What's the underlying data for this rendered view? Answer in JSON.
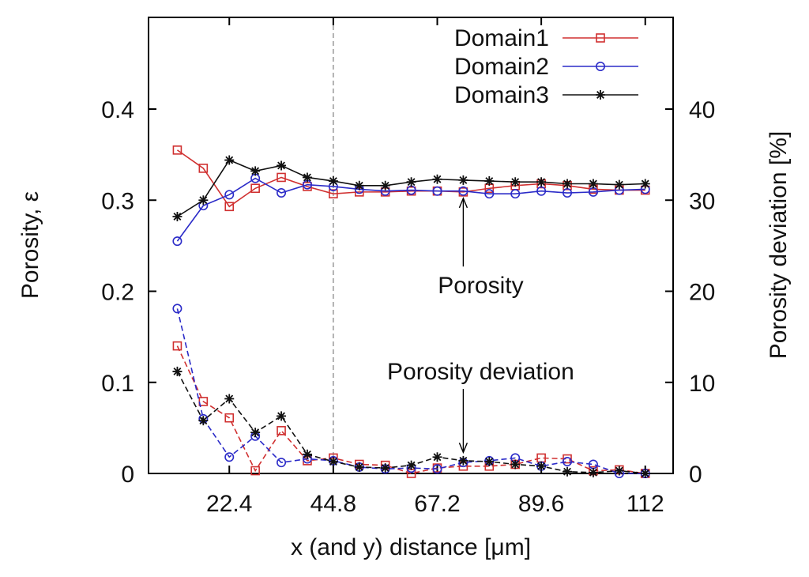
{
  "chart_data": {
    "type": "line",
    "xlabel": "x (and y) distance [μm]",
    "ylabel_left": "Porosity, ε",
    "ylabel_right": "Porosity deviation [%]",
    "xlim": [
      5,
      118
    ],
    "ylim_left": [
      0,
      0.4
    ],
    "ylim_right": [
      0,
      40
    ],
    "x_ticks": [
      "22.4",
      "44.8",
      "67.2",
      "89.6",
      "112"
    ],
    "x_tick_values": [
      22.4,
      44.8,
      67.2,
      89.6,
      112
    ],
    "y_ticks_left": [
      "0",
      "0.1",
      "0.2",
      "0.3",
      "0.4"
    ],
    "y_tick_values_left": [
      0,
      0.1,
      0.2,
      0.3,
      0.4
    ],
    "y_ticks_right": [
      "0",
      "10",
      "20",
      "30",
      "40"
    ],
    "y_tick_values_right": [
      0,
      10,
      20,
      30,
      40
    ],
    "grid": false,
    "reference_line_x": 44.8,
    "legend_position": "top-right",
    "x": [
      11.2,
      16.8,
      22.4,
      28.0,
      33.6,
      39.2,
      44.8,
      50.4,
      56.0,
      61.6,
      67.2,
      72.8,
      78.4,
      84.0,
      89.6,
      95.2,
      100.8,
      106.4,
      112.0
    ],
    "series": [
      {
        "name": "Domain1",
        "color": "#d03030",
        "marker": "square",
        "porosity": [
          0.355,
          0.335,
          0.293,
          0.313,
          0.325,
          0.315,
          0.307,
          0.309,
          0.309,
          0.31,
          0.31,
          0.309,
          0.313,
          0.316,
          0.318,
          0.316,
          0.312,
          0.311,
          0.311
        ],
        "deviation": [
          14.0,
          7.9,
          6.1,
          0.3,
          4.7,
          1.4,
          1.7,
          1.0,
          0.9,
          0.0,
          0.6,
          0.8,
          0.8,
          1.0,
          1.7,
          1.6,
          0.3,
          0.4,
          0.0
        ]
      },
      {
        "name": "Domain2",
        "color": "#2b2bc8",
        "marker": "circle",
        "porosity": [
          0.255,
          0.294,
          0.306,
          0.324,
          0.308,
          0.317,
          0.315,
          0.312,
          0.31,
          0.311,
          0.31,
          0.31,
          0.307,
          0.307,
          0.31,
          0.308,
          0.309,
          0.311,
          0.312
        ],
        "deviation": [
          18.1,
          6.0,
          1.8,
          4.1,
          1.2,
          1.6,
          1.4,
          0.7,
          0.5,
          0.6,
          0.5,
          1.2,
          1.4,
          1.7,
          0.8,
          1.3,
          1.0,
          0.0,
          0.0
        ]
      },
      {
        "name": "Domain3",
        "color": "#111111",
        "marker": "star",
        "porosity": [
          0.282,
          0.3,
          0.344,
          0.332,
          0.338,
          0.325,
          0.321,
          0.316,
          0.316,
          0.32,
          0.323,
          0.322,
          0.321,
          0.32,
          0.32,
          0.318,
          0.318,
          0.317,
          0.318
        ],
        "deviation": [
          11.2,
          5.8,
          8.2,
          4.5,
          6.3,
          2.1,
          1.3,
          0.7,
          0.6,
          0.9,
          1.8,
          1.4,
          1.3,
          1.0,
          0.8,
          0.2,
          0.1,
          0.3,
          0.0
        ]
      }
    ],
    "annotations": [
      {
        "text": "Porosity",
        "anchor_x": 72.8,
        "anchor_y_left": 0.309,
        "label_y_left": 0.215
      },
      {
        "text": "Porosity deviation",
        "anchor_x": 72.8,
        "anchor_y_left": 0.018,
        "label_y_left": 0.098
      }
    ]
  }
}
